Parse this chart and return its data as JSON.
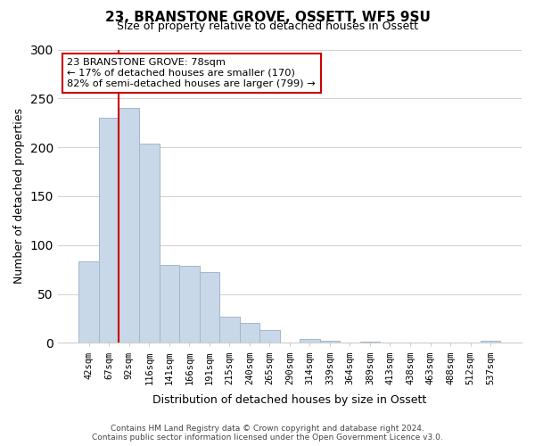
{
  "title1": "23, BRANSTONE GROVE, OSSETT, WF5 9SU",
  "title2": "Size of property relative to detached houses in Ossett",
  "xlabel": "Distribution of detached houses by size in Ossett",
  "ylabel": "Number of detached properties",
  "bar_labels": [
    "42sqm",
    "67sqm",
    "92sqm",
    "116sqm",
    "141sqm",
    "166sqm",
    "191sqm",
    "215sqm",
    "240sqm",
    "265sqm",
    "290sqm",
    "314sqm",
    "339sqm",
    "364sqm",
    "389sqm",
    "413sqm",
    "438sqm",
    "463sqm",
    "488sqm",
    "512sqm",
    "537sqm"
  ],
  "bar_values": [
    83,
    230,
    240,
    204,
    80,
    79,
    72,
    27,
    20,
    13,
    0,
    4,
    2,
    0,
    1,
    0,
    0,
    0,
    0,
    0,
    2
  ],
  "bar_color": "#c8d8e8",
  "bar_edge_color": "#a0b8cc",
  "vline_x": 1,
  "vline_color": "#cc0000",
  "ylim": [
    0,
    300
  ],
  "yticks": [
    0,
    50,
    100,
    150,
    200,
    250,
    300
  ],
  "annotation_title": "23 BRANSTONE GROVE: 78sqm",
  "annotation_line1": "← 17% of detached houses are smaller (170)",
  "annotation_line2": "82% of semi-detached houses are larger (799) →",
  "annotation_box_color": "#ffffff",
  "annotation_box_edge": "#cc0000",
  "footer1": "Contains HM Land Registry data © Crown copyright and database right 2024.",
  "footer2": "Contains public sector information licensed under the Open Government Licence v3.0.",
  "background_color": "#ffffff",
  "grid_color": "#d0d0d0"
}
